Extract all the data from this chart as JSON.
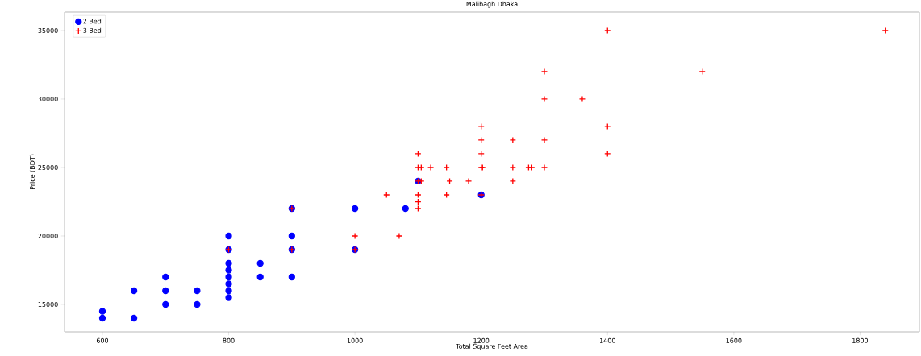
{
  "chart_data": {
    "type": "scatter",
    "title": "Malibagh Dhaka",
    "xlabel": "Total Square Feet Area",
    "ylabel": "Price (BDT)",
    "xlim": [
      540,
      1894
    ],
    "ylim": [
      13000,
      36350
    ],
    "xticks": [
      600,
      800,
      1000,
      1200,
      1400,
      1600,
      1800
    ],
    "yticks": [
      15000,
      20000,
      25000,
      30000,
      35000
    ],
    "grid": false,
    "legend": "top left",
    "series": [
      {
        "name": "2 Bed",
        "color": "#0000ff",
        "marker": "circle",
        "x": [
          600,
          600,
          650,
          650,
          700,
          700,
          700,
          750,
          750,
          800,
          800,
          800,
          800,
          800,
          800,
          800,
          800,
          850,
          850,
          900,
          900,
          900,
          900,
          1000,
          1000,
          1080,
          1100,
          1200
        ],
        "values": [
          14000,
          14500,
          16000,
          14000,
          17000,
          16000,
          15000,
          16000,
          15000,
          20000,
          19000,
          18000,
          17500,
          17000,
          16500,
          16000,
          15500,
          18000,
          17000,
          22000,
          20000,
          19000,
          17000,
          22000,
          19000,
          22000,
          24000,
          23000
        ]
      },
      {
        "name": "3 Bed",
        "color": "#ff0000",
        "marker": "cross",
        "x": [
          800,
          900,
          900,
          1000,
          1000,
          1070,
          1050,
          1100,
          1145,
          1200,
          1100,
          1100,
          1100,
          1105,
          1150,
          1180,
          1250,
          1100,
          1105,
          1120,
          1145,
          1200,
          1202,
          1250,
          1275,
          1280,
          1300,
          1100,
          1200,
          1400,
          1200,
          1250,
          1300,
          1200,
          1400,
          1300,
          1360,
          1300,
          1550,
          1400,
          1840
        ],
        "values": [
          19000,
          19000,
          22000,
          19000,
          20000,
          20000,
          23000,
          23000,
          23000,
          23000,
          22500,
          22000,
          24000,
          24000,
          24000,
          24000,
          24000,
          25000,
          25000,
          25000,
          25000,
          25000,
          25000,
          25000,
          25000,
          25000,
          25000,
          26000,
          26000,
          26000,
          27000,
          27000,
          27000,
          28000,
          28000,
          30000,
          30000,
          32000,
          32000,
          35000,
          35000
        ]
      }
    ]
  }
}
